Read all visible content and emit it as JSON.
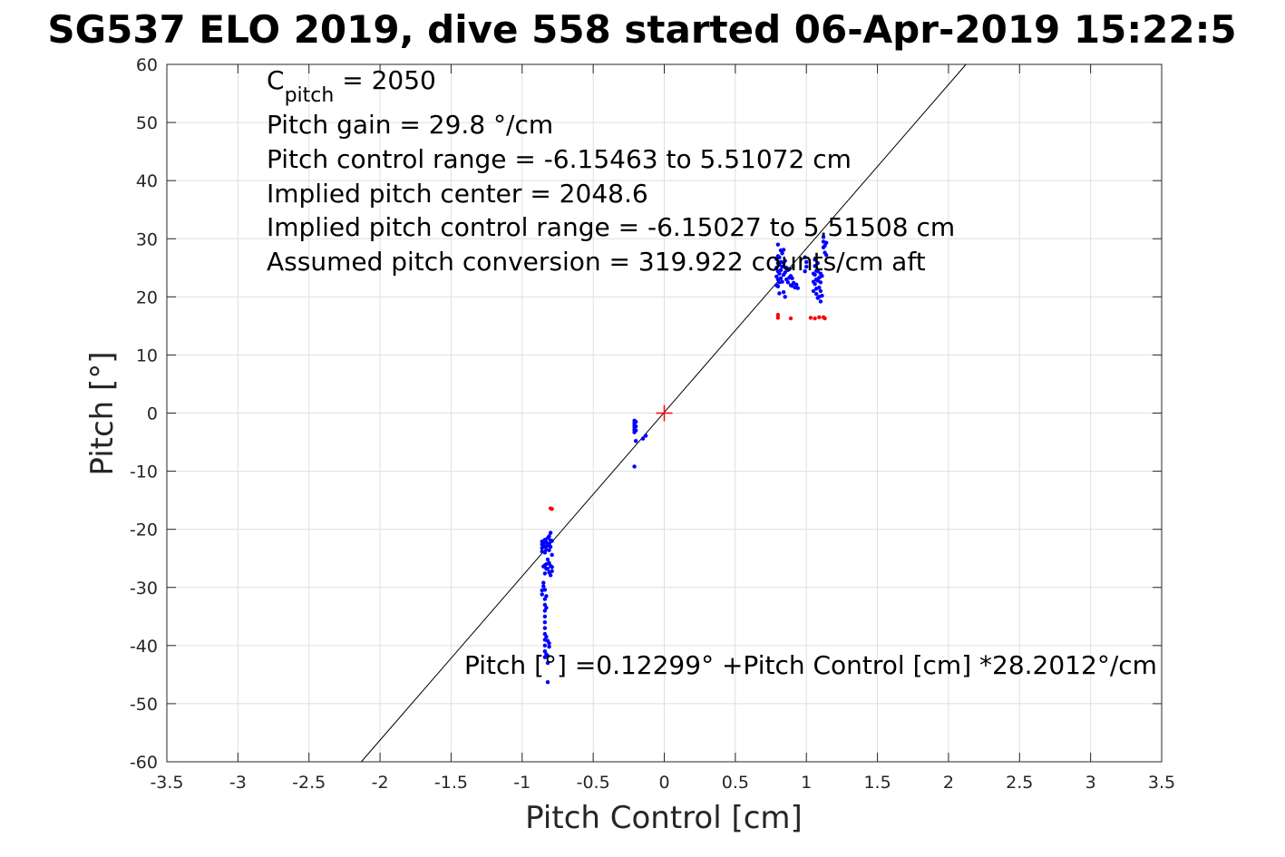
{
  "chart_data": {
    "type": "scatter",
    "title": "SG537 ELO 2019, dive 558 started 06-Apr-2019 15:22:5",
    "xlabel": "Pitch Control [cm]",
    "ylabel": "Pitch [°]",
    "xlim": [
      -3.5,
      3.5
    ],
    "ylim": [
      -60,
      60
    ],
    "xticks": [
      -3.5,
      -3,
      -2.5,
      -2,
      -1.5,
      -1,
      -0.5,
      0,
      0.5,
      1,
      1.5,
      2,
      2.5,
      3,
      3.5
    ],
    "yticks": [
      -60,
      -50,
      -40,
      -30,
      -20,
      -10,
      0,
      10,
      20,
      30,
      40,
      50,
      60
    ],
    "xtick_labels": [
      "-3.5",
      "-3",
      "-2.5",
      "-2",
      "-1.5",
      "-1",
      "-0.5",
      "0",
      "0.5",
      "1",
      "1.5",
      "2",
      "2.5",
      "3",
      "3.5"
    ],
    "ytick_labels": [
      "-60",
      "-50",
      "-40",
      "-30",
      "-20",
      "-10",
      "0",
      "10",
      "20",
      "30",
      "40",
      "50",
      "60"
    ],
    "grid": true,
    "annotations": {
      "cpitch_main": "C",
      "cpitch_sub": "pitch",
      "cpitch_value": " = 2050",
      "pitch_gain": "Pitch gain = 29.8 °/cm",
      "pitch_control_range": "Pitch control range = -6.15463 to 5.51072 cm",
      "implied_pitch_center": "Implied pitch center = 2048.6",
      "implied_pitch_control_range": "Implied pitch control range = -6.15027 to 5.51508 cm",
      "assumed_pitch_conversion": "Assumed pitch conversion = 319.922 counts/cm aft",
      "fit_equation": "Pitch [°] =0.12299° +Pitch Control [cm] *28.2012°/cm"
    },
    "fit_line": {
      "intercept": 0.12299,
      "slope": 28.2012,
      "color": "#000000"
    },
    "center_marker": {
      "x": 0,
      "y": 0,
      "color": "#ff0000"
    },
    "series": [
      {
        "color": "#0000ff",
        "points": [
          [
            -0.86,
            -22.1
          ],
          [
            -0.86,
            -22.6
          ],
          [
            -0.86,
            -23.2
          ],
          [
            -0.86,
            -23.8
          ],
          [
            -0.85,
            -22.4
          ],
          [
            -0.85,
            -23.0
          ],
          [
            -0.84,
            -21.8
          ],
          [
            -0.84,
            -22.9
          ],
          [
            -0.84,
            -24.0
          ],
          [
            -0.83,
            -22.2
          ],
          [
            -0.83,
            -23.5
          ],
          [
            -0.83,
            -26.0
          ],
          [
            -0.82,
            -21.5
          ],
          [
            -0.82,
            -22.8
          ],
          [
            -0.82,
            -25.2
          ],
          [
            -0.82,
            -26.8
          ],
          [
            -0.81,
            -21.2
          ],
          [
            -0.81,
            -22.5
          ],
          [
            -0.81,
            -23.6
          ],
          [
            -0.81,
            -25.8
          ],
          [
            -0.81,
            -27.4
          ],
          [
            -0.8,
            -20.6
          ],
          [
            -0.8,
            -21.9
          ],
          [
            -0.8,
            -23.0
          ],
          [
            -0.8,
            -26.3
          ],
          [
            -0.8,
            -27.9
          ],
          [
            -0.79,
            -22.0
          ],
          [
            -0.79,
            -24.4
          ],
          [
            -0.79,
            -26.5
          ],
          [
            -0.79,
            -27.2
          ],
          [
            -0.83,
            -26.8
          ],
          [
            -0.84,
            -26.2
          ],
          [
            -0.85,
            -26.4
          ],
          [
            -0.84,
            -27.6
          ],
          [
            -0.86,
            -30.5
          ],
          [
            -0.86,
            -31.2
          ],
          [
            -0.85,
            -29.2
          ],
          [
            -0.85,
            -29.8
          ],
          [
            -0.84,
            -30.4
          ],
          [
            -0.84,
            -32.0
          ],
          [
            -0.84,
            -33.0
          ],
          [
            -0.84,
            -34.0
          ],
          [
            -0.84,
            -35.0
          ],
          [
            -0.84,
            -36.0
          ],
          [
            -0.84,
            -37.0
          ],
          [
            -0.84,
            -38.0
          ],
          [
            -0.84,
            -39.0
          ],
          [
            -0.84,
            -40.0
          ],
          [
            -0.84,
            -41.0
          ],
          [
            -0.84,
            -42.0
          ],
          [
            -0.83,
            -38.5
          ],
          [
            -0.83,
            -41.5
          ],
          [
            -0.82,
            -39.2
          ],
          [
            -0.82,
            -41.8
          ],
          [
            -0.81,
            -39.6
          ],
          [
            -0.81,
            -40.2
          ],
          [
            -0.82,
            -43.0
          ],
          [
            -0.82,
            -46.3
          ],
          [
            -0.83,
            -31.5
          ],
          [
            -0.83,
            -33.5
          ],
          [
            -0.21,
            -1.3
          ],
          [
            -0.21,
            -1.7
          ],
          [
            -0.21,
            -2.1
          ],
          [
            -0.21,
            -2.5
          ],
          [
            -0.21,
            -2.9
          ],
          [
            -0.21,
            -3.3
          ],
          [
            -0.2,
            -1.5
          ],
          [
            -0.2,
            -2.3
          ],
          [
            -0.2,
            -3.0
          ],
          [
            -0.2,
            -4.8
          ],
          [
            -0.21,
            -9.2
          ],
          [
            -0.13,
            -3.9
          ],
          [
            -0.15,
            -4.4
          ],
          [
            0.79,
            22.0
          ],
          [
            0.79,
            23.5
          ],
          [
            0.79,
            25.0
          ],
          [
            0.79,
            26.5
          ],
          [
            0.8,
            21.8
          ],
          [
            0.8,
            23.0
          ],
          [
            0.8,
            24.4
          ],
          [
            0.8,
            25.8
          ],
          [
            0.8,
            27.0
          ],
          [
            0.81,
            22.5
          ],
          [
            0.81,
            24.0
          ],
          [
            0.81,
            25.5
          ],
          [
            0.81,
            26.8
          ],
          [
            0.82,
            23.2
          ],
          [
            0.82,
            24.6
          ],
          [
            0.82,
            26.0
          ],
          [
            0.83,
            22.6
          ],
          [
            0.83,
            25.2
          ],
          [
            0.83,
            27.5
          ],
          [
            0.84,
            23.8
          ],
          [
            0.84,
            25.9
          ],
          [
            0.84,
            28.1
          ],
          [
            0.85,
            24.2
          ],
          [
            0.85,
            26.2
          ],
          [
            0.86,
            23.0
          ],
          [
            0.86,
            25.0
          ],
          [
            0.87,
            22.5
          ],
          [
            0.87,
            24.6
          ],
          [
            0.88,
            23.3
          ],
          [
            0.88,
            24.8
          ],
          [
            0.89,
            22.0
          ],
          [
            0.89,
            23.6
          ],
          [
            0.9,
            21.9
          ],
          [
            0.9,
            23.2
          ],
          [
            0.91,
            22.4
          ],
          [
            0.92,
            21.6
          ],
          [
            0.93,
            22.1
          ],
          [
            0.94,
            21.5
          ],
          [
            0.84,
            20.8
          ],
          [
            0.81,
            20.6
          ],
          [
            0.85,
            20.0
          ],
          [
            0.8,
            29.0
          ],
          [
            0.82,
            28.0
          ],
          [
            0.99,
            26.8
          ],
          [
            1.0,
            26.0
          ],
          [
            1.0,
            25.2
          ],
          [
            0.99,
            24.4
          ],
          [
            1.05,
            21.0
          ],
          [
            1.05,
            22.6
          ],
          [
            1.05,
            24.0
          ],
          [
            1.06,
            22.2
          ],
          [
            1.06,
            23.8
          ],
          [
            1.06,
            25.3
          ],
          [
            1.07,
            21.4
          ],
          [
            1.07,
            23.0
          ],
          [
            1.07,
            24.5
          ],
          [
            1.07,
            20.5
          ],
          [
            1.08,
            22.8
          ],
          [
            1.08,
            24.4
          ],
          [
            1.08,
            25.8
          ],
          [
            1.09,
            21.6
          ],
          [
            1.09,
            23.3
          ],
          [
            1.09,
            20.0
          ],
          [
            1.1,
            21.0
          ],
          [
            1.1,
            22.5
          ],
          [
            1.1,
            24.0
          ],
          [
            1.1,
            19.2
          ],
          [
            1.11,
            20.2
          ],
          [
            1.11,
            23.6
          ],
          [
            1.06,
            26.4
          ],
          [
            1.08,
            19.8
          ],
          [
            1.12,
            28.5
          ],
          [
            1.12,
            29.5
          ],
          [
            1.12,
            30.3
          ],
          [
            1.13,
            27.6
          ],
          [
            1.13,
            28.8
          ],
          [
            1.14,
            29.3
          ],
          [
            1.14,
            27.2
          ]
        ]
      },
      {
        "color": "#ff0000",
        "points": [
          [
            -0.79,
            -16.5
          ],
          [
            -0.8,
            -16.4
          ],
          [
            0.8,
            16.4
          ],
          [
            0.8,
            16.9
          ],
          [
            0.89,
            16.3
          ],
          [
            1.03,
            16.4
          ],
          [
            1.06,
            16.3
          ],
          [
            1.09,
            16.5
          ],
          [
            1.12,
            16.5
          ],
          [
            1.13,
            16.3
          ]
        ]
      }
    ]
  }
}
